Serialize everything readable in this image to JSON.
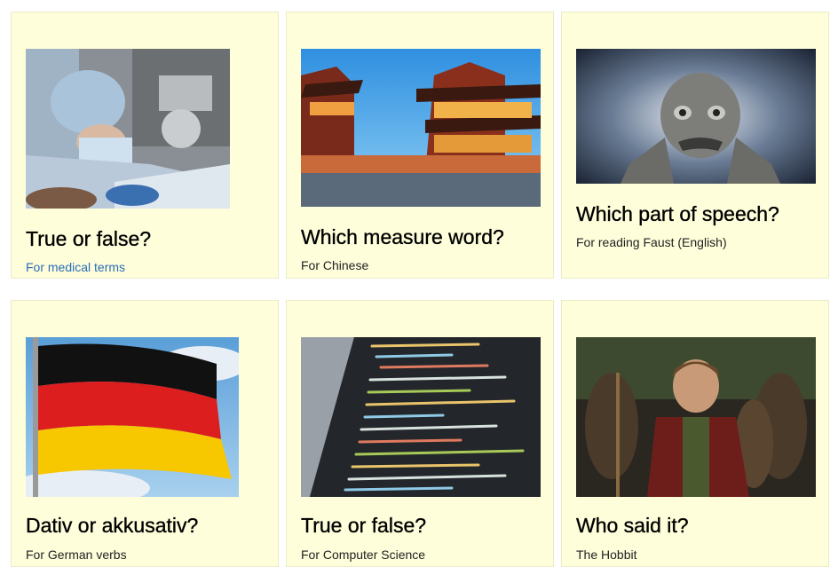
{
  "cards": [
    {
      "title": "True or false?",
      "subtitle": "For medical terms",
      "image": "surgeon-photo"
    },
    {
      "title": "Which measure word?",
      "subtitle": "For Chinese",
      "image": "chinese-pagoda-photo"
    },
    {
      "title": "Which part of speech?",
      "subtitle": "For reading Faust (English)",
      "image": "gargoyle-photo"
    },
    {
      "title": "Dativ or akkusativ?",
      "subtitle": "For German verbs",
      "image": "german-flag-photo"
    },
    {
      "title": "True or false?",
      "subtitle": "For Computer Science",
      "image": "code-screen-photo"
    },
    {
      "title": "Who said it?",
      "subtitle": "The Hobbit",
      "image": "hobbit-photo"
    }
  ]
}
